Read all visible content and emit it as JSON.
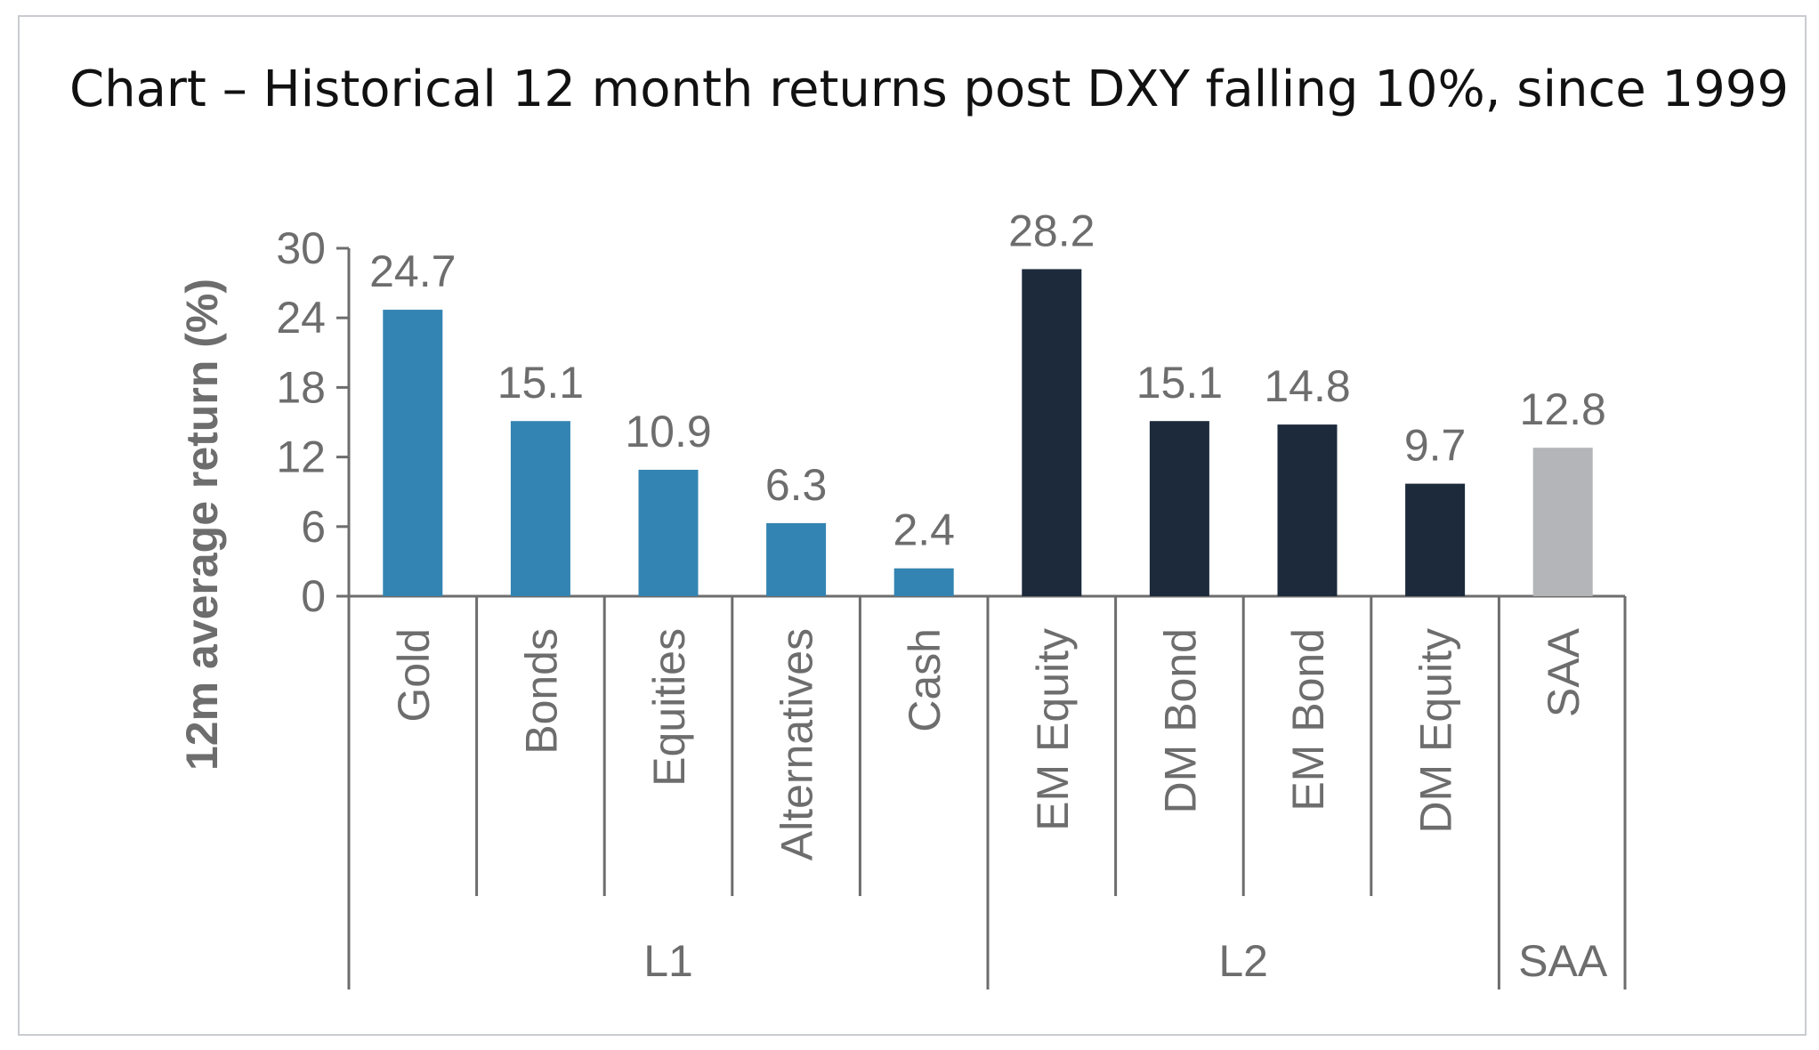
{
  "title": "Chart – Historical 12 month returns post DXY falling 10%, since 1999",
  "chart_data": {
    "type": "bar",
    "title": "Chart – Historical 12 month returns post DXY falling 10%, since 1999",
    "xlabel": "",
    "ylabel": "12m average return (%)",
    "ylim": [
      0,
      30
    ],
    "yticks": [
      0,
      6,
      12,
      18,
      24,
      30
    ],
    "grid": false,
    "legend": "none",
    "categories": [
      "Gold",
      "Bonds",
      "Equities",
      "Alternatives",
      "Cash",
      "EM Equity",
      "DM Bond",
      "EM Bond",
      "DM Equity",
      "SAA"
    ],
    "values": [
      24.7,
      15.1,
      10.9,
      6.3,
      2.4,
      28.2,
      15.1,
      14.8,
      9.7,
      12.8
    ],
    "data_labels": [
      "24.7",
      "15.1",
      "10.9",
      "6.3",
      "2.4",
      "28.2",
      "15.1",
      "14.8",
      "9.7",
      "12.8"
    ],
    "groups": [
      {
        "label": "L1",
        "categories": [
          "Gold",
          "Bonds",
          "Equities",
          "Alternatives",
          "Cash"
        ],
        "color": "#3384b2"
      },
      {
        "label": "L2",
        "categories": [
          "EM Equity",
          "DM Bond",
          "EM Bond",
          "DM Equity"
        ],
        "color": "#1d2a3b"
      },
      {
        "label": "SAA",
        "categories": [
          "SAA"
        ],
        "color": "#b3b5b8"
      }
    ],
    "colors": {
      "axis": "#6d6d6d",
      "text": "#6d6d6d"
    }
  }
}
